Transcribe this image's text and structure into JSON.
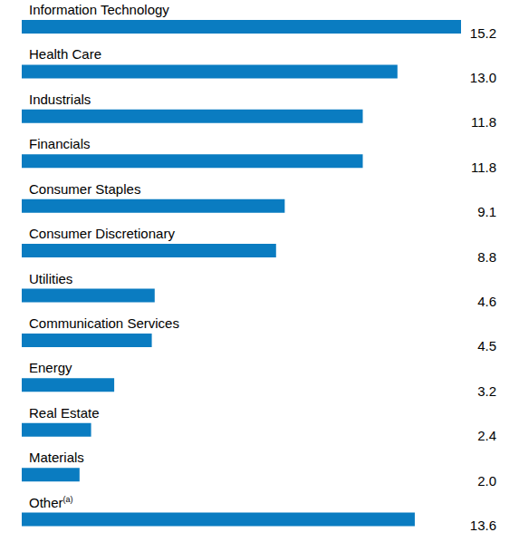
{
  "chart_data": {
    "type": "bar",
    "orientation": "horizontal",
    "categories": [
      "Information Technology",
      "Health Care",
      "Industrials",
      "Financials",
      "Consumer Staples",
      "Consumer Discretionary",
      "Utilities",
      "Communication Services",
      "Energy",
      "Real Estate",
      "Materials",
      "Other(a)"
    ],
    "values": [
      15.2,
      13.0,
      11.8,
      11.8,
      9.1,
      8.8,
      4.6,
      4.5,
      3.2,
      2.4,
      2.0,
      13.6
    ],
    "value_labels": [
      "15.2",
      "13.0",
      "11.8",
      "11.8",
      "9.1",
      "8.8",
      "4.6",
      "4.5",
      "3.2",
      "2.4",
      "2.0",
      "13.6"
    ],
    "color": "#0a7cc1",
    "xlim": [
      0,
      15.2
    ],
    "grid": false,
    "tick_labels": false,
    "data_labels": true
  }
}
